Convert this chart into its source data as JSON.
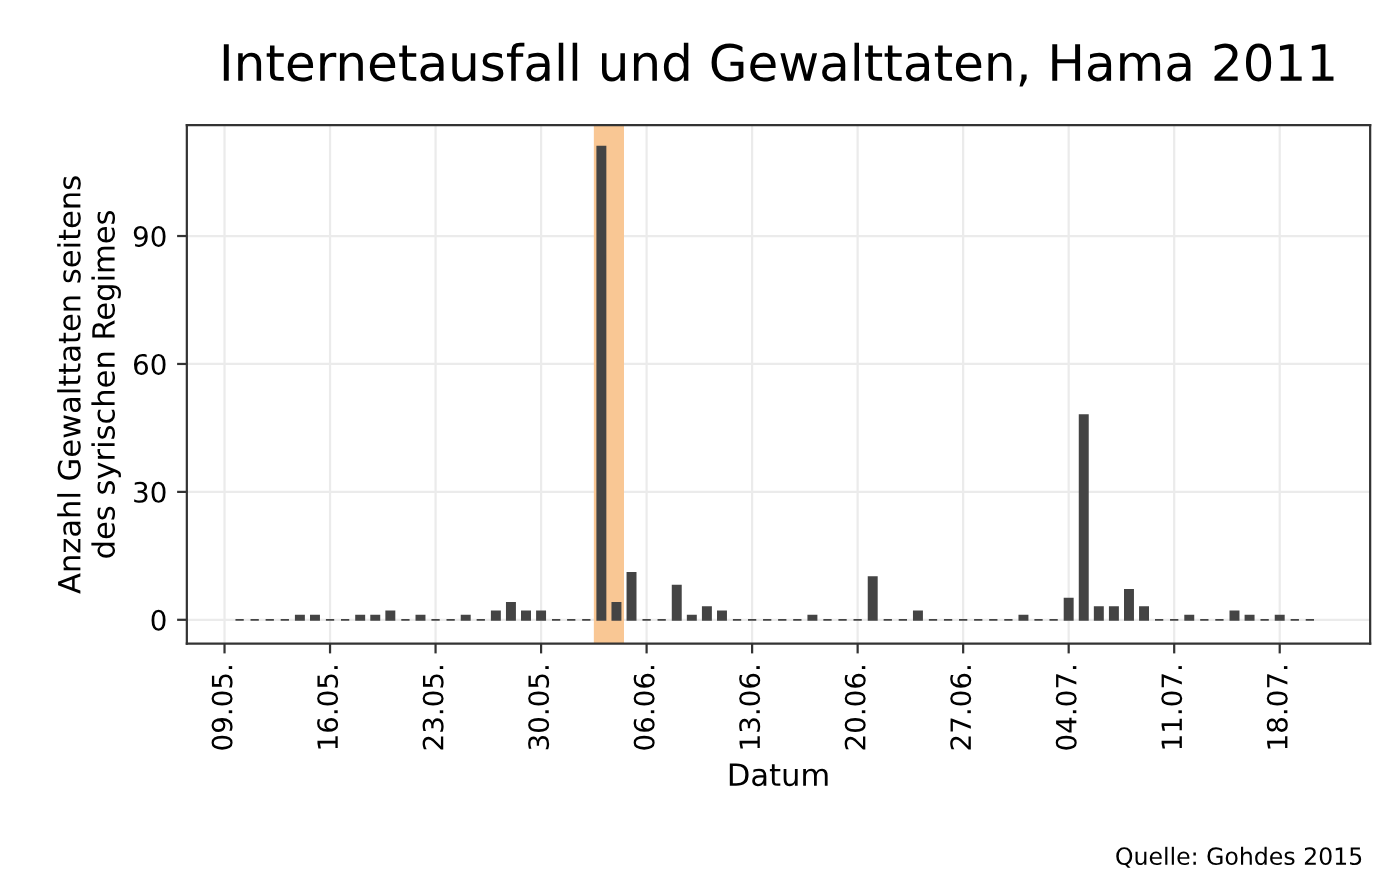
{
  "chart_data": {
    "type": "bar",
    "title": "Internetausfall und Gewalttaten, Hama 2011",
    "xlabel": "Datum",
    "ylabel": "Anzahl Gewalttaten seitens\ndes syrischen Regimes",
    "x": [
      "2011-05-10",
      "2011-05-11",
      "2011-05-12",
      "2011-05-13",
      "2011-05-14",
      "2011-05-15",
      "2011-05-16",
      "2011-05-17",
      "2011-05-18",
      "2011-05-19",
      "2011-05-20",
      "2011-05-21",
      "2011-05-22",
      "2011-05-23",
      "2011-05-24",
      "2011-05-25",
      "2011-05-26",
      "2011-05-27",
      "2011-05-28",
      "2011-05-29",
      "2011-05-30",
      "2011-05-31",
      "2011-06-01",
      "2011-06-02",
      "2011-06-03",
      "2011-06-04",
      "2011-06-05",
      "2011-06-06",
      "2011-06-07",
      "2011-06-08",
      "2011-06-09",
      "2011-06-10",
      "2011-06-11",
      "2011-06-12",
      "2011-06-13",
      "2011-06-14",
      "2011-06-15",
      "2011-06-16",
      "2011-06-17",
      "2011-06-18",
      "2011-06-19",
      "2011-06-20",
      "2011-06-21",
      "2011-06-22",
      "2011-06-23",
      "2011-06-24",
      "2011-06-25",
      "2011-06-26",
      "2011-06-27",
      "2011-06-28",
      "2011-06-29",
      "2011-06-30",
      "2011-07-01",
      "2011-07-02",
      "2011-07-03",
      "2011-07-04",
      "2011-07-05",
      "2011-07-06",
      "2011-07-07",
      "2011-07-08",
      "2011-07-09",
      "2011-07-10",
      "2011-07-11",
      "2011-07-12",
      "2011-07-13",
      "2011-07-14",
      "2011-07-15",
      "2011-07-16",
      "2011-07-17",
      "2011-07-18",
      "2011-07-19",
      "2011-07-20"
    ],
    "values": [
      0,
      0,
      0,
      0,
      1,
      1,
      0,
      0,
      1,
      1,
      2,
      0,
      1,
      0,
      0,
      1,
      0,
      2,
      4,
      2,
      2,
      0,
      0,
      0,
      111,
      4,
      11,
      0,
      0,
      8,
      1,
      3,
      2,
      0,
      0,
      0,
      0,
      0,
      1,
      0,
      0,
      0,
      10,
      0,
      0,
      2,
      0,
      0,
      0,
      0,
      0,
      0,
      1,
      0,
      0,
      5,
      48,
      3,
      3,
      7,
      3,
      0,
      0,
      1,
      0,
      0,
      2,
      1,
      0,
      1,
      0,
      0
    ],
    "color": "#444444",
    "xlim": [
      "2011-05-06T12:00",
      "2011-07-24"
    ],
    "xticks": [
      {
        "value": "2011-05-09",
        "label": "09.05."
      },
      {
        "value": "2011-05-16",
        "label": "16.05."
      },
      {
        "value": "2011-05-23",
        "label": "23.05."
      },
      {
        "value": "2011-05-30",
        "label": "30.05."
      },
      {
        "value": "2011-06-06",
        "label": "06.06."
      },
      {
        "value": "2011-06-13",
        "label": "13.06."
      },
      {
        "value": "2011-06-20",
        "label": "20.06."
      },
      {
        "value": "2011-06-27",
        "label": "27.06."
      },
      {
        "value": "2011-07-04",
        "label": "04.07."
      },
      {
        "value": "2011-07-11",
        "label": "11.07."
      },
      {
        "value": "2011-07-18",
        "label": "18.07."
      }
    ],
    "ylim": [
      -5.6,
      116
    ],
    "yticks": [
      0,
      30,
      60,
      90
    ],
    "bands": [
      {
        "axis": "x",
        "from": "2011-06-02T12:00",
        "to": "2011-06-04T12:00",
        "color": "#f9c794"
      }
    ],
    "grid": true,
    "annotations": [
      "Quelle: Gohdes 2015"
    ]
  }
}
